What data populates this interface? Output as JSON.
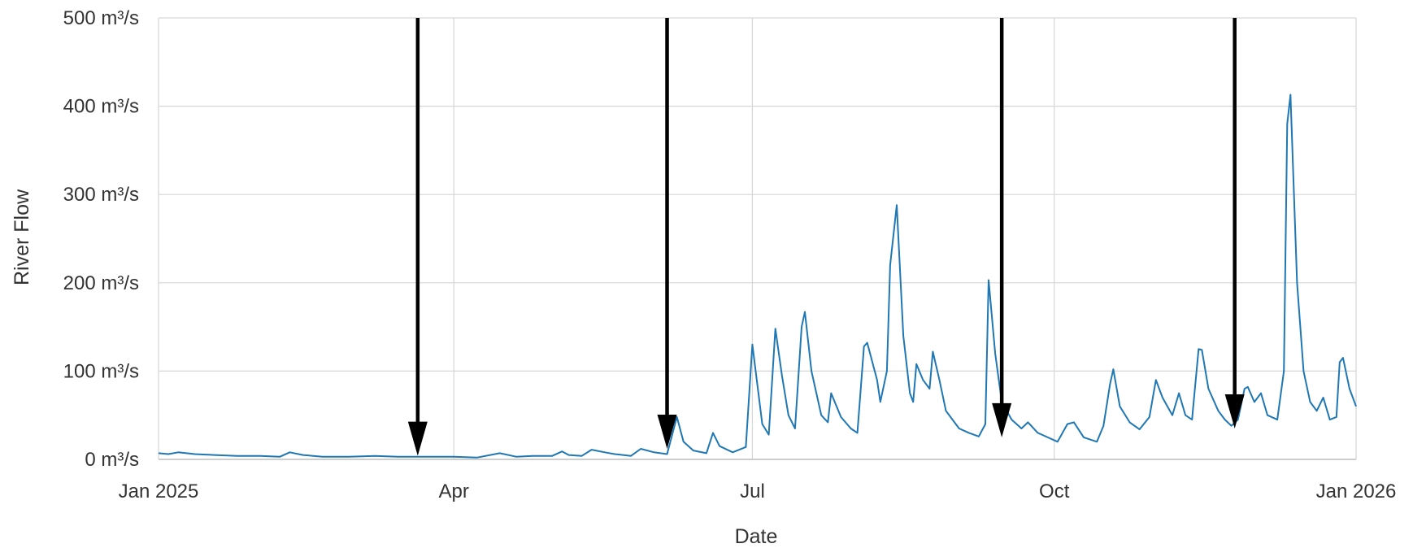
{
  "chart_data": {
    "type": "line",
    "xlabel": "Date",
    "ylabel": "River Flow",
    "x_axis": {
      "type": "date",
      "range": [
        "2025-01-01",
        "2026-01-01"
      ],
      "ticks": [
        {
          "date": "2025-01-01",
          "label": "Jan 2025"
        },
        {
          "date": "2025-04-01",
          "label": "Apr"
        },
        {
          "date": "2025-07-01",
          "label": "Jul"
        },
        {
          "date": "2025-10-01",
          "label": "Oct"
        },
        {
          "date": "2026-01-01",
          "label": "Jan 2026"
        }
      ]
    },
    "y_axis": {
      "range": [
        0,
        500
      ],
      "ticks": [
        {
          "value": 0,
          "label": "0 m³/s"
        },
        {
          "value": 100,
          "label": "100 m³/s"
        },
        {
          "value": 200,
          "label": "200 m³/s"
        },
        {
          "value": 300,
          "label": "300 m³/s"
        },
        {
          "value": 400,
          "label": "400 m³/s"
        },
        {
          "value": 500,
          "label": "500 m³/s"
        }
      ]
    },
    "grid": true,
    "legend": "none",
    "series": [
      {
        "color": "#1f77b4",
        "points": [
          [
            "2025-01-01",
            7
          ],
          [
            "2025-01-04",
            6
          ],
          [
            "2025-01-07",
            8
          ],
          [
            "2025-01-12",
            6
          ],
          [
            "2025-01-18",
            5
          ],
          [
            "2025-01-25",
            4
          ],
          [
            "2025-02-01",
            4
          ],
          [
            "2025-02-07",
            3
          ],
          [
            "2025-02-10",
            8
          ],
          [
            "2025-02-14",
            5
          ],
          [
            "2025-02-20",
            3
          ],
          [
            "2025-02-28",
            3
          ],
          [
            "2025-03-08",
            4
          ],
          [
            "2025-03-15",
            3
          ],
          [
            "2025-03-22",
            3
          ],
          [
            "2025-03-28",
            3
          ],
          [
            "2025-04-01",
            3
          ],
          [
            "2025-04-08",
            2
          ],
          [
            "2025-04-15",
            7
          ],
          [
            "2025-04-20",
            3
          ],
          [
            "2025-04-25",
            4
          ],
          [
            "2025-05-01",
            4
          ],
          [
            "2025-05-04",
            9
          ],
          [
            "2025-05-06",
            5
          ],
          [
            "2025-05-10",
            4
          ],
          [
            "2025-05-13",
            11
          ],
          [
            "2025-05-17",
            8
          ],
          [
            "2025-05-20",
            6
          ],
          [
            "2025-05-25",
            4
          ],
          [
            "2025-05-28",
            12
          ],
          [
            "2025-06-01",
            8
          ],
          [
            "2025-06-05",
            6
          ],
          [
            "2025-06-08",
            48
          ],
          [
            "2025-06-10",
            20
          ],
          [
            "2025-06-13",
            10
          ],
          [
            "2025-06-17",
            7
          ],
          [
            "2025-06-19",
            30
          ],
          [
            "2025-06-21",
            15
          ],
          [
            "2025-06-25",
            8
          ],
          [
            "2025-06-29",
            14
          ],
          [
            "2025-07-01",
            130
          ],
          [
            "2025-07-04",
            40
          ],
          [
            "2025-07-06",
            28
          ],
          [
            "2025-07-08",
            148
          ],
          [
            "2025-07-10",
            95
          ],
          [
            "2025-07-12",
            50
          ],
          [
            "2025-07-14",
            35
          ],
          [
            "2025-07-16",
            150
          ],
          [
            "2025-07-17",
            167
          ],
          [
            "2025-07-19",
            100
          ],
          [
            "2025-07-22",
            50
          ],
          [
            "2025-07-24",
            42
          ],
          [
            "2025-07-25",
            75
          ],
          [
            "2025-07-28",
            48
          ],
          [
            "2025-07-31",
            35
          ],
          [
            "2025-08-02",
            30
          ],
          [
            "2025-08-04",
            128
          ],
          [
            "2025-08-05",
            132
          ],
          [
            "2025-08-08",
            90
          ],
          [
            "2025-08-09",
            65
          ],
          [
            "2025-08-11",
            100
          ],
          [
            "2025-08-12",
            220
          ],
          [
            "2025-08-14",
            288
          ],
          [
            "2025-08-16",
            140
          ],
          [
            "2025-08-18",
            75
          ],
          [
            "2025-08-19",
            65
          ],
          [
            "2025-08-20",
            108
          ],
          [
            "2025-08-22",
            90
          ],
          [
            "2025-08-24",
            80
          ],
          [
            "2025-08-25",
            122
          ],
          [
            "2025-08-27",
            90
          ],
          [
            "2025-08-29",
            55
          ],
          [
            "2025-09-02",
            35
          ],
          [
            "2025-09-05",
            30
          ],
          [
            "2025-09-08",
            26
          ],
          [
            "2025-09-10",
            40
          ],
          [
            "2025-09-11",
            203
          ],
          [
            "2025-09-13",
            120
          ],
          [
            "2025-09-15",
            65
          ],
          [
            "2025-09-18",
            45
          ],
          [
            "2025-09-21",
            35
          ],
          [
            "2025-09-23",
            42
          ],
          [
            "2025-09-26",
            30
          ],
          [
            "2025-09-29",
            25
          ],
          [
            "2025-10-02",
            20
          ],
          [
            "2025-10-05",
            40
          ],
          [
            "2025-10-07",
            42
          ],
          [
            "2025-10-10",
            25
          ],
          [
            "2025-10-14",
            20
          ],
          [
            "2025-10-16",
            38
          ],
          [
            "2025-10-18",
            85
          ],
          [
            "2025-10-19",
            102
          ],
          [
            "2025-10-21",
            60
          ],
          [
            "2025-10-24",
            42
          ],
          [
            "2025-10-27",
            34
          ],
          [
            "2025-10-30",
            48
          ],
          [
            "2025-11-01",
            90
          ],
          [
            "2025-11-03",
            70
          ],
          [
            "2025-11-06",
            50
          ],
          [
            "2025-11-08",
            75
          ],
          [
            "2025-11-10",
            50
          ],
          [
            "2025-11-12",
            45
          ],
          [
            "2025-11-14",
            125
          ],
          [
            "2025-11-15",
            124
          ],
          [
            "2025-11-17",
            80
          ],
          [
            "2025-11-20",
            55
          ],
          [
            "2025-11-22",
            45
          ],
          [
            "2025-11-24",
            38
          ],
          [
            "2025-11-26",
            45
          ],
          [
            "2025-11-28",
            80
          ],
          [
            "2025-11-29",
            82
          ],
          [
            "2025-12-01",
            65
          ],
          [
            "2025-12-03",
            75
          ],
          [
            "2025-12-05",
            50
          ],
          [
            "2025-12-08",
            45
          ],
          [
            "2025-12-10",
            100
          ],
          [
            "2025-12-11",
            380
          ],
          [
            "2025-12-12",
            413
          ],
          [
            "2025-12-14",
            200
          ],
          [
            "2025-12-16",
            100
          ],
          [
            "2025-12-18",
            65
          ],
          [
            "2025-12-20",
            55
          ],
          [
            "2025-12-22",
            70
          ],
          [
            "2025-12-24",
            45
          ],
          [
            "2025-12-26",
            48
          ],
          [
            "2025-12-27",
            110
          ],
          [
            "2025-12-28",
            115
          ],
          [
            "2025-12-30",
            80
          ],
          [
            "2026-01-01",
            60
          ]
        ]
      }
    ],
    "markers": [
      {
        "date": "2025-03-21",
        "from": 500,
        "to": 4
      },
      {
        "date": "2025-06-05",
        "from": 500,
        "to": 12
      },
      {
        "date": "2025-09-15",
        "from": 500,
        "to": 25
      },
      {
        "date": "2025-11-25",
        "from": 500,
        "to": 35
      }
    ]
  }
}
